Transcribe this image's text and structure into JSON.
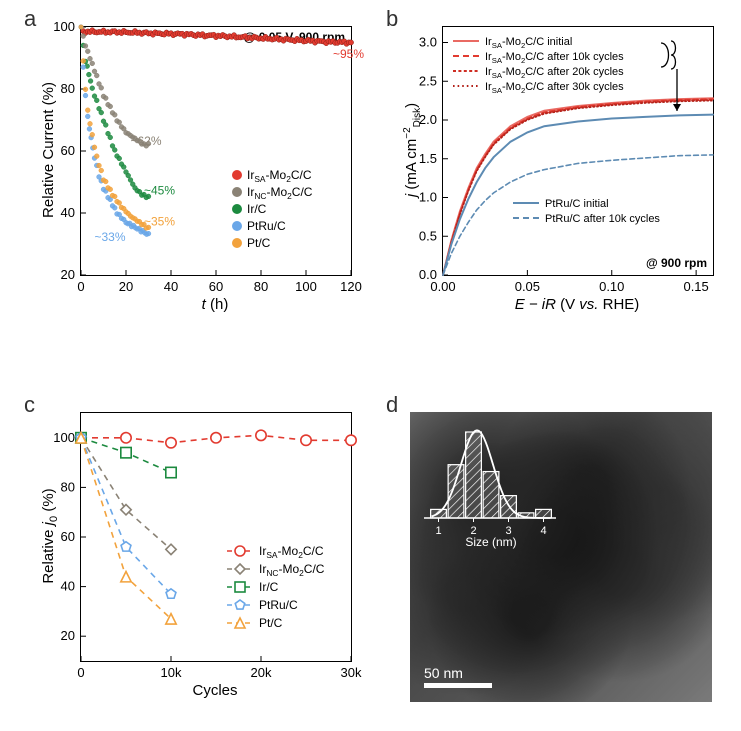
{
  "panels": {
    "a": {
      "label": "a",
      "type": "scatter",
      "title_corner": "@ 0.05 V, 900 rpm",
      "xlabel": "t (h)",
      "ylabel": "Relative Current (%)",
      "xlim": [
        0,
        120
      ],
      "xtick_step": 20,
      "ylim": [
        20,
        100
      ],
      "ytick_step": 20,
      "background_color": "#ffffff",
      "series": [
        {
          "name": "Ir/C",
          "color": "#1c8a3f",
          "marker": "circle",
          "end_label": "~45%",
          "data": [
            [
              0,
              100
            ],
            [
              1,
              94
            ],
            [
              2,
              89
            ],
            [
              3.5,
              85
            ],
            [
              5,
              80
            ],
            [
              7,
              76
            ],
            [
              9,
              72
            ],
            [
              12,
              66
            ],
            [
              15,
              60
            ],
            [
              18,
              56
            ],
            [
              21,
              52
            ],
            [
              24,
              48
            ],
            [
              27,
              46
            ],
            [
              30,
              45
            ]
          ]
        },
        {
          "name": "IrNC-Mo2C/C",
          "color": "#8a8275",
          "marker": "circle",
          "end_label": "~62%",
          "data": [
            [
              0,
              100
            ],
            [
              1,
              97
            ],
            [
              2,
              94
            ],
            [
              4,
              90
            ],
            [
              6,
              86
            ],
            [
              8,
              82
            ],
            [
              10,
              78
            ],
            [
              13,
              74
            ],
            [
              16,
              70
            ],
            [
              20,
              66
            ],
            [
              24,
              64
            ],
            [
              28,
              62
            ],
            [
              30,
              62
            ]
          ]
        },
        {
          "name": "PtRu/C",
          "color": "#6aa7e8",
          "marker": "circle",
          "end_label": "~33%",
          "data": [
            [
              0,
              100
            ],
            [
              1,
              87
            ],
            [
              2,
              78
            ],
            [
              3,
              71
            ],
            [
              4.5,
              64
            ],
            [
              6,
              58
            ],
            [
              8,
              52
            ],
            [
              10,
              48
            ],
            [
              13,
              44
            ],
            [
              16,
              40
            ],
            [
              20,
              37
            ],
            [
              25,
              35
            ],
            [
              30,
              33
            ]
          ]
        },
        {
          "name": "Pt/C",
          "color": "#f2a23c",
          "marker": "circle",
          "end_label": "~35%",
          "data": [
            [
              0,
              100
            ],
            [
              1,
              89
            ],
            [
              2,
              80
            ],
            [
              3,
              73
            ],
            [
              5,
              65
            ],
            [
              7,
              58
            ],
            [
              10,
              51
            ],
            [
              14,
              46
            ],
            [
              18,
              42
            ],
            [
              22,
              39
            ],
            [
              26,
              37
            ],
            [
              30,
              35
            ]
          ]
        },
        {
          "name": "IrSA-Mo2C/C",
          "color": "#e23b30",
          "marker": "circle",
          "end_label": "~95%",
          "fit": true,
          "data": [
            [
              0,
              98.5
            ],
            [
              5,
              98.5
            ],
            [
              10,
              98.4
            ],
            [
              15,
              98.4
            ],
            [
              20,
              98.3
            ],
            [
              25,
              98.2
            ],
            [
              30,
              98.0
            ],
            [
              35,
              97.9
            ],
            [
              40,
              97.8
            ],
            [
              45,
              97.7
            ],
            [
              50,
              97.5
            ],
            [
              55,
              97.3
            ],
            [
              60,
              97.2
            ],
            [
              65,
              97.0
            ],
            [
              70,
              96.8
            ],
            [
              75,
              96.6
            ],
            [
              80,
              96.4
            ],
            [
              85,
              96.2
            ],
            [
              90,
              96.0
            ],
            [
              95,
              95.8
            ],
            [
              100,
              95.6
            ],
            [
              105,
              95.4
            ],
            [
              110,
              95.2
            ],
            [
              115,
              95.1
            ],
            [
              120,
              95.0
            ]
          ]
        }
      ],
      "legend_order": [
        "IrSA-Mo2C/C",
        "IrNC-Mo2C/C",
        "Ir/C",
        "PtRu/C",
        "Pt/C"
      ],
      "legend_labels": {
        "IrSA-Mo2C/C": "Ir<sub>SA</sub>-Mo<sub>2</sub>C/C",
        "IrNC-Mo2C/C": "Ir<sub>NC</sub>-Mo<sub>2</sub>C/C",
        "Ir/C": "Ir/C",
        "PtRu/C": "PtRu/C",
        "Pt/C": "Pt/C"
      },
      "label_fontsize": 15,
      "tick_fontsize": 13
    },
    "b": {
      "label": "b",
      "type": "line",
      "title_corner": "@ 900 rpm",
      "xlabel": "E − iR (V vs. RHE)",
      "ylabel": "j (mA cm⁻² Disk)",
      "xlim": [
        0,
        0.16
      ],
      "xticks": [
        0.0,
        0.05,
        0.1,
        0.15
      ],
      "ylim": [
        0,
        3.2
      ],
      "ytick_step": 0.5,
      "background_color": "#ffffff",
      "series": [
        {
          "name": "IrSA-Mo2C/C initial",
          "color": "#e96a63",
          "dash": "solid",
          "width": 2,
          "data": [
            [
              0,
              0
            ],
            [
              0.005,
              0.45
            ],
            [
              0.01,
              0.82
            ],
            [
              0.015,
              1.12
            ],
            [
              0.02,
              1.38
            ],
            [
              0.025,
              1.56
            ],
            [
              0.03,
              1.72
            ],
            [
              0.04,
              1.92
            ],
            [
              0.05,
              2.04
            ],
            [
              0.06,
              2.12
            ],
            [
              0.08,
              2.18
            ],
            [
              0.1,
              2.22
            ],
            [
              0.12,
              2.25
            ],
            [
              0.14,
              2.27
            ],
            [
              0.16,
              2.28
            ]
          ]
        },
        {
          "name": "IrSA-Mo2C/C after 10k cycles",
          "color": "#e23b30",
          "dash": "dash",
          "width": 1.6,
          "data": [
            [
              0,
              0
            ],
            [
              0.005,
              0.44
            ],
            [
              0.01,
              0.8
            ],
            [
              0.015,
              1.1
            ],
            [
              0.02,
              1.36
            ],
            [
              0.025,
              1.54
            ],
            [
              0.03,
              1.7
            ],
            [
              0.04,
              1.9
            ],
            [
              0.05,
              2.02
            ],
            [
              0.06,
              2.1
            ],
            [
              0.08,
              2.17
            ],
            [
              0.1,
              2.21
            ],
            [
              0.12,
              2.24
            ],
            [
              0.14,
              2.26
            ],
            [
              0.16,
              2.27
            ]
          ]
        },
        {
          "name": "IrSA-Mo2C/C after 20k cycles",
          "color": "#cf2d23",
          "dash": "dot3",
          "width": 1.6,
          "data": [
            [
              0,
              0
            ],
            [
              0.005,
              0.43
            ],
            [
              0.01,
              0.79
            ],
            [
              0.015,
              1.09
            ],
            [
              0.02,
              1.35
            ],
            [
              0.025,
              1.53
            ],
            [
              0.03,
              1.69
            ],
            [
              0.04,
              1.89
            ],
            [
              0.05,
              2.01
            ],
            [
              0.06,
              2.09
            ],
            [
              0.08,
              2.16
            ],
            [
              0.1,
              2.2
            ],
            [
              0.12,
              2.23
            ],
            [
              0.14,
              2.25
            ],
            [
              0.16,
              2.26
            ]
          ]
        },
        {
          "name": "IrSA-Mo2C/C after 30k cycles",
          "color": "#b3221a",
          "dash": "dot",
          "width": 1.6,
          "data": [
            [
              0,
              0
            ],
            [
              0.005,
              0.42
            ],
            [
              0.01,
              0.78
            ],
            [
              0.015,
              1.08
            ],
            [
              0.02,
              1.34
            ],
            [
              0.025,
              1.52
            ],
            [
              0.03,
              1.68
            ],
            [
              0.04,
              1.88
            ],
            [
              0.05,
              2.0
            ],
            [
              0.06,
              2.08
            ],
            [
              0.08,
              2.15
            ],
            [
              0.1,
              2.19
            ],
            [
              0.12,
              2.22
            ],
            [
              0.14,
              2.24
            ],
            [
              0.16,
              2.25
            ]
          ]
        },
        {
          "name": "PtRu/C initial",
          "color": "#5d8bb3",
          "dash": "solid",
          "width": 2,
          "data": [
            [
              0,
              0
            ],
            [
              0.005,
              0.4
            ],
            [
              0.01,
              0.72
            ],
            [
              0.015,
              0.98
            ],
            [
              0.02,
              1.2
            ],
            [
              0.025,
              1.38
            ],
            [
              0.03,
              1.52
            ],
            [
              0.04,
              1.72
            ],
            [
              0.05,
              1.84
            ],
            [
              0.06,
              1.92
            ],
            [
              0.08,
              1.98
            ],
            [
              0.1,
              2.02
            ],
            [
              0.12,
              2.04
            ],
            [
              0.14,
              2.06
            ],
            [
              0.16,
              2.07
            ]
          ]
        },
        {
          "name": "PtRu/C after 10k cycles",
          "color": "#5d8bb3",
          "dash": "dash",
          "width": 1.6,
          "data": [
            [
              0,
              0
            ],
            [
              0.005,
              0.28
            ],
            [
              0.01,
              0.5
            ],
            [
              0.015,
              0.68
            ],
            [
              0.02,
              0.84
            ],
            [
              0.025,
              0.96
            ],
            [
              0.03,
              1.06
            ],
            [
              0.04,
              1.2
            ],
            [
              0.05,
              1.3
            ],
            [
              0.06,
              1.36
            ],
            [
              0.08,
              1.44
            ],
            [
              0.1,
              1.48
            ],
            [
              0.12,
              1.51
            ],
            [
              0.14,
              1.54
            ],
            [
              0.16,
              1.55
            ]
          ]
        }
      ],
      "legend_lines": [
        {
          "label": "Ir<sub>SA</sub>-Mo<sub>2</sub>C/C initial",
          "color": "#e96a63",
          "dash": "solid"
        },
        {
          "label": "Ir<sub>SA</sub>-Mo<sub>2</sub>C/C after 10k cycles",
          "color": "#e23b30",
          "dash": "dash"
        },
        {
          "label": "Ir<sub>SA</sub>-Mo<sub>2</sub>C/C after 20k cycles",
          "color": "#cf2d23",
          "dash": "dot3"
        },
        {
          "label": "Ir<sub>SA</sub>-Mo<sub>2</sub>C/C after 30k cycles",
          "color": "#b3221a",
          "dash": "dot"
        },
        {
          "label": "PtRu/C initial",
          "color": "#5d8bb3",
          "dash": "solid"
        },
        {
          "label": "PtRu/C after 10k cycles",
          "color": "#5d8bb3",
          "dash": "dash"
        }
      ]
    },
    "c": {
      "label": "c",
      "type": "line-marker",
      "xlabel": "Cycles",
      "ylabel": "Relative j₀ (%)",
      "xlim": [
        0,
        30000
      ],
      "xticks": [
        0,
        10000,
        20000,
        30000
      ],
      "xtick_labels": [
        "0",
        "10k",
        "20k",
        "30k"
      ],
      "ylim": [
        10,
        110
      ],
      "yticks": [
        20,
        40,
        60,
        80,
        100
      ],
      "background_color": "#ffffff",
      "series": [
        {
          "name": "IrSA-Mo2C/C",
          "color": "#e23b30",
          "marker": "circle",
          "dash": "dash",
          "data": [
            [
              0,
              100
            ],
            [
              5000,
              100
            ],
            [
              10000,
              98
            ],
            [
              15000,
              100
            ],
            [
              20000,
              101
            ],
            [
              25000,
              99
            ],
            [
              30000,
              99
            ]
          ]
        },
        {
          "name": "IrNC-Mo2C/C",
          "color": "#8a8275",
          "marker": "diamond",
          "dash": "dash",
          "data": [
            [
              0,
              100
            ],
            [
              5000,
              71
            ],
            [
              10000,
              55
            ]
          ]
        },
        {
          "name": "Ir/C",
          "color": "#1c8a3f",
          "marker": "square",
          "dash": "dash",
          "data": [
            [
              0,
              100
            ],
            [
              5000,
              94
            ],
            [
              10000,
              86
            ]
          ]
        },
        {
          "name": "PtRu/C",
          "color": "#6aa7e8",
          "marker": "pentagon",
          "dash": "dash",
          "data": [
            [
              0,
              100
            ],
            [
              5000,
              56
            ],
            [
              10000,
              37
            ]
          ]
        },
        {
          "name": "Pt/C",
          "color": "#f2a23c",
          "marker": "triangle",
          "dash": "dash",
          "data": [
            [
              0,
              100
            ],
            [
              5000,
              44
            ],
            [
              10000,
              27
            ]
          ]
        }
      ],
      "legend_labels": {
        "IrSA-Mo2C/C": "Ir<sub>SA</sub>-Mo<sub>2</sub>C/C",
        "IrNC-Mo2C/C": "Ir<sub>NC</sub>-Mo<sub>2</sub>C/C",
        "Ir/C": "Ir/C",
        "PtRu/C": "PtRu/C",
        "Pt/C": "Pt/C"
      }
    },
    "d": {
      "label": "d",
      "type": "image",
      "scale_bar": "50 nm",
      "histogram": {
        "xlabel": "Size (nm)",
        "xticks": [
          1,
          2,
          3,
          4
        ],
        "bins": [
          {
            "x": 1.0,
            "h": 0.1
          },
          {
            "x": 1.5,
            "h": 0.62
          },
          {
            "x": 2.0,
            "h": 1.0
          },
          {
            "x": 2.5,
            "h": 0.54
          },
          {
            "x": 3.0,
            "h": 0.26
          },
          {
            "x": 3.5,
            "h": 0.06
          },
          {
            "x": 4.0,
            "h": 0.1
          }
        ],
        "bar_fill": "#c8c8c8",
        "bar_stroke": "#ffffff",
        "curve_color": "#ffffff"
      }
    }
  }
}
